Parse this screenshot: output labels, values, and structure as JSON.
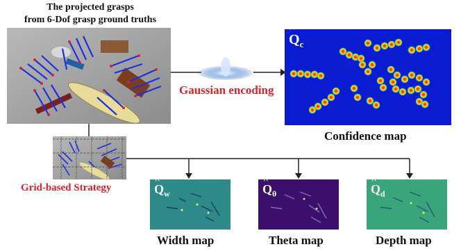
{
  "title_line1": "The projected grasps",
  "title_line2": "from 6-Dof grasp ground truths",
  "gaussian_label": "Gaussian encoding",
  "grid_label": "Grid-based Strategy",
  "confidence_caption": "Confidence map",
  "confidence_symbol": "Q",
  "confidence_sub": "c",
  "width_caption": "Width map",
  "width_symbol": "Q",
  "width_sub": "w",
  "theta_caption": "Theta map",
  "theta_symbol": "Q",
  "theta_sub": "θ",
  "depth_caption": "Depth map",
  "depth_symbol": "Q",
  "depth_sub": "d",
  "colors": {
    "confidence_bg": "#0a1bd0",
    "width_bg": "#2e8a88",
    "theta_bg": "#3c0f6a",
    "depth_bg": "#3aa57a",
    "accent_red": "#e0202a",
    "grasp_blue": "#1f2fe0"
  }
}
